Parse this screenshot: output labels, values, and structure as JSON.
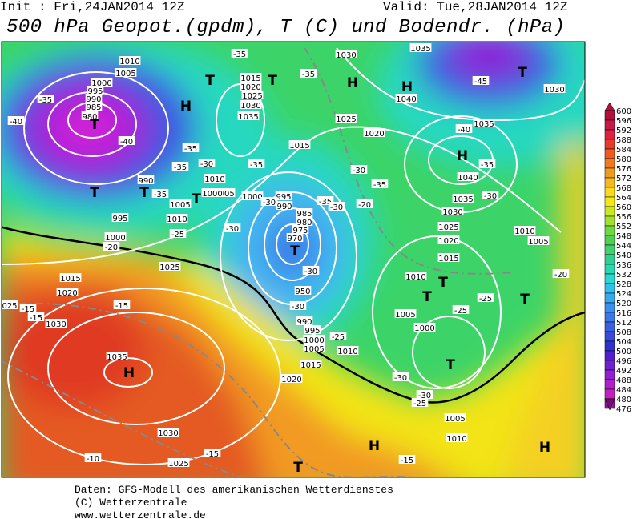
{
  "header": {
    "init": "Init : Fri,24JAN2014 12Z",
    "valid": "Valid: Tue,28JAN2014 12Z",
    "title": "500 hPa Geopot.(gpdm), T (C) und Bodendr. (hPa)"
  },
  "map": {
    "centers": [
      "H",
      "H",
      "H",
      "H",
      "H",
      "H",
      "H",
      "T",
      "T",
      "T",
      "T",
      "T",
      "T",
      "T",
      "T",
      "T",
      "T",
      "T",
      "T",
      "T"
    ],
    "isobars": [
      "1010",
      "1005",
      "1000",
      "995",
      "990",
      "985",
      "980",
      "990",
      "995",
      "1000",
      "1015",
      "1020",
      "1030",
      "1035",
      "1030",
      "1025",
      "1025",
      "1015",
      "1020",
      "1025",
      "1030",
      "1035",
      "1015",
      "1025",
      "1020",
      "1030",
      "1035",
      "1040",
      "1035",
      "1040",
      "1035",
      "1030",
      "1025",
      "1020",
      "1015",
      "1010",
      "1010",
      "1005",
      "1005",
      "1000",
      "1005",
      "1010",
      "1030",
      "1005",
      "1000",
      "995",
      "990",
      "985",
      "980",
      "975",
      "970",
      "950",
      "990",
      "995",
      "1000",
      "1005",
      "1010",
      "1015",
      "1020",
      "1005",
      "1010",
      "1000",
      "1010",
      "025"
    ],
    "temperatures": [
      "-35",
      "-40",
      "-40",
      "-35",
      "-35",
      "-30",
      "-35",
      "-25",
      "-30",
      "-35",
      "-35",
      "-35",
      "-30",
      "-35",
      "-30",
      "-35",
      "-30",
      "-30",
      "-25",
      "-45",
      "-40",
      "-35",
      "-30",
      "-25",
      "-25",
      "-20",
      "-30",
      "-30",
      "-25",
      "-20",
      "-15",
      "-15",
      "-15",
      "-15",
      "-15",
      "-10",
      "-20",
      "-30"
    ]
  },
  "colorbar": {
    "labels": [
      "600",
      "596",
      "592",
      "588",
      "584",
      "580",
      "576",
      "572",
      "568",
      "564",
      "560",
      "556",
      "552",
      "548",
      "544",
      "540",
      "536",
      "532",
      "528",
      "524",
      "520",
      "516",
      "512",
      "508",
      "504",
      "500",
      "496",
      "492",
      "488",
      "484",
      "480",
      "476"
    ]
  },
  "footer": {
    "lines": [
      "Daten: GFS-Modell des amerikanischen Wetterdienstes",
      "(C) Wetterzentrale",
      "www.wetterzentrale.de"
    ]
  }
}
